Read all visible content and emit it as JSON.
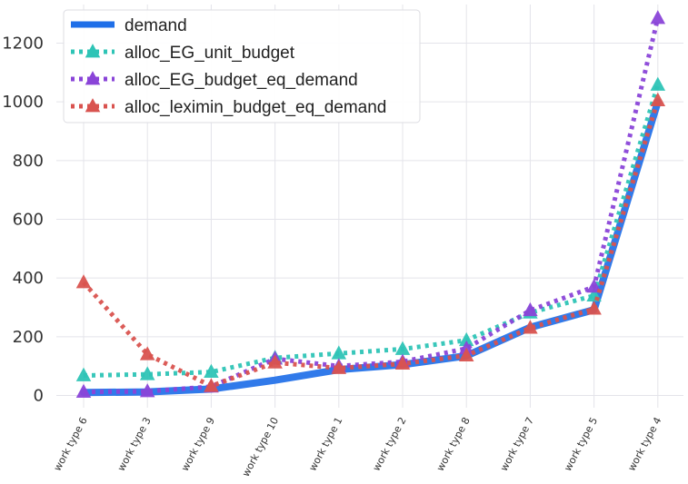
{
  "chart_data": {
    "type": "line",
    "title": "",
    "xlabel": "",
    "ylabel": "",
    "categories": [
      "work type 6",
      "work type 3",
      "work type 9",
      "work type 10",
      "work type 1",
      "work type 2",
      "work type 8",
      "work type 7",
      "work type 5",
      "work type 4"
    ],
    "ylim": [
      -20,
      1320
    ],
    "yticks": [
      0,
      200,
      400,
      600,
      800,
      1000,
      1200
    ],
    "grid": true,
    "legend_position": "top-left",
    "series": [
      {
        "name": "demand",
        "style": "solid",
        "marker": "none",
        "color": "#1f6fe8",
        "values": [
          10,
          12,
          22,
          52,
          88,
          105,
          135,
          232,
          292,
          1000
        ]
      },
      {
        "name": "alloc_EG_unit_budget",
        "style": "dotted",
        "marker": "triangle",
        "color": "#2ec4b6",
        "values": [
          68,
          72,
          80,
          128,
          143,
          158,
          188,
          282,
          340,
          1058
        ]
      },
      {
        "name": "alloc_EG_budget_eq_demand",
        "style": "dotted",
        "marker": "triangle",
        "color": "#8a44d8",
        "values": [
          12,
          14,
          30,
          125,
          100,
          115,
          160,
          290,
          370,
          1285
        ]
      },
      {
        "name": "alloc_leximin_budget_eq_demand",
        "style": "dotted",
        "marker": "triangle",
        "color": "#d9534f",
        "values": [
          385,
          140,
          32,
          112,
          93,
          108,
          136,
          230,
          295,
          1005
        ]
      }
    ]
  }
}
